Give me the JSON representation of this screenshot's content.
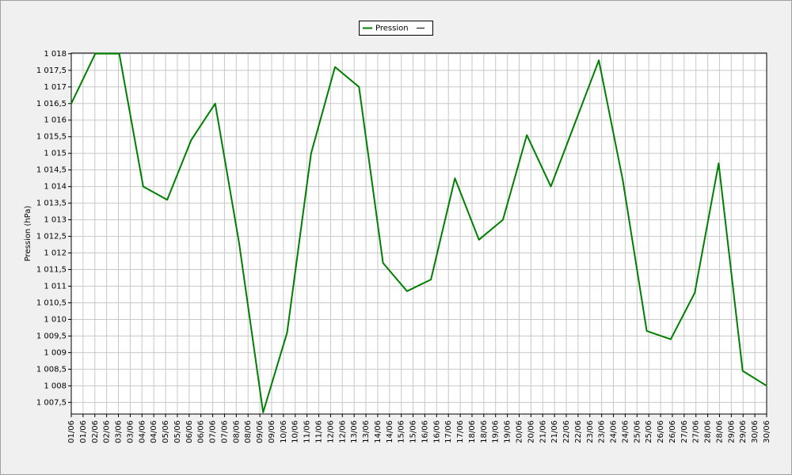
{
  "chart_data": {
    "type": "line",
    "y_label": "Pression (hPa)",
    "x_tick_labels": [
      "01/06",
      "01/06",
      "02/06",
      "02/06",
      "03/06",
      "03/06",
      "04/06",
      "04/06",
      "05/06",
      "05/06",
      "06/06",
      "06/06",
      "07/06",
      "07/06",
      "08/06",
      "08/06",
      "09/06",
      "09/06",
      "10/06",
      "10/06",
      "11/06",
      "11/06",
      "12/06",
      "12/06",
      "13/06",
      "13/06",
      "14/06",
      "14/06",
      "15/06",
      "15/06",
      "16/06",
      "16/06",
      "17/06",
      "17/06",
      "18/06",
      "18/06",
      "19/06",
      "19/06",
      "20/06",
      "20/06",
      "21/06",
      "21/06",
      "22/06",
      "22/06",
      "23/06",
      "23/06",
      "24/06",
      "24/06",
      "25/06",
      "25/06",
      "26/06",
      "26/06",
      "27/06",
      "27/06",
      "28/06",
      "28/06",
      "29/06",
      "29/06",
      "30/06",
      "30/06"
    ],
    "series": [
      {
        "name": "Pression",
        "color": "#007f00",
        "values": [
          1016.5,
          1018,
          1018,
          1014,
          1013.6,
          1015.4,
          1016.5,
          1012.3,
          1007.2,
          1009.6,
          1015,
          1017.6,
          1017,
          1011.7,
          1010.85,
          1011.2,
          1014.25,
          1012.4,
          1013,
          1015.55,
          1014,
          1015.9,
          1017.8,
          1014.2,
          1009.65,
          1009.4,
          1010.8,
          1014.7,
          1008.45,
          1008
        ]
      }
    ],
    "ylim": [
      1007.15,
      1018.02
    ],
    "yticks": [
      {
        "value": 1007.5,
        "label": "1 007,5"
      },
      {
        "value": 1008,
        "label": "1 008"
      },
      {
        "value": 1008.5,
        "label": "1 008,5"
      },
      {
        "value": 1009,
        "label": "1 009"
      },
      {
        "value": 1009.5,
        "label": "1 009,5"
      },
      {
        "value": 1010,
        "label": "1 010"
      },
      {
        "value": 1010.5,
        "label": "1 010,5"
      },
      {
        "value": 1011,
        "label": "1 011"
      },
      {
        "value": 1011.5,
        "label": "1 011,5"
      },
      {
        "value": 1012,
        "label": "1 012"
      },
      {
        "value": 1012.5,
        "label": "1 012,5"
      },
      {
        "value": 1013,
        "label": "1 013"
      },
      {
        "value": 1013.5,
        "label": "1 013,5"
      },
      {
        "value": 1014,
        "label": "1 014"
      },
      {
        "value": 1014.5,
        "label": "1 014,5"
      },
      {
        "value": 1015,
        "label": "1 015"
      },
      {
        "value": 1015.5,
        "label": "1 015,5"
      },
      {
        "value": 1016,
        "label": "1 016"
      },
      {
        "value": 1016.5,
        "label": "1 016,5"
      },
      {
        "value": 1017,
        "label": "1 017"
      },
      {
        "value": 1017.5,
        "label": "1 017,5"
      },
      {
        "value": 1018,
        "label": "1 018"
      }
    ],
    "grid": true,
    "legend": "top"
  }
}
